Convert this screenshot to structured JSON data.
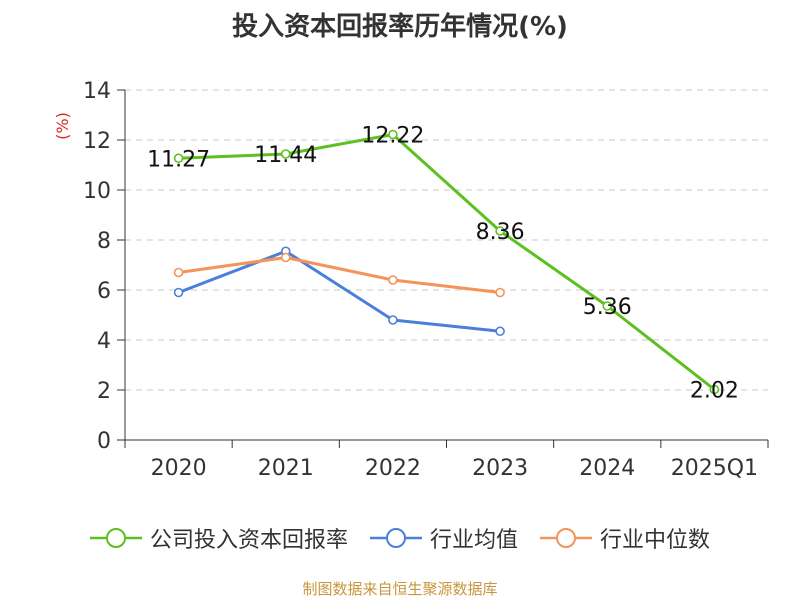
{
  "chart_data": {
    "type": "line",
    "title": "投入资本回报率历年情况(%)",
    "ylabel": "(%)",
    "categories": [
      "2020",
      "2021",
      "2022",
      "2023",
      "2024",
      "2025Q1"
    ],
    "ylim": [
      0,
      14
    ],
    "yticks": [
      0,
      2,
      4,
      6,
      8,
      10,
      12,
      14
    ],
    "grid": true,
    "legend_position": "bottom",
    "series": [
      {
        "name": "公司投入资本回报率",
        "color": "#5cc01f",
        "values": [
          11.27,
          11.44,
          12.22,
          8.36,
          5.36,
          2.02
        ],
        "labels": [
          "11.27",
          "11.44",
          "12.22",
          "8.36",
          "5.36",
          "2.02"
        ]
      },
      {
        "name": "行业均值",
        "color": "#4a7fdc",
        "values": [
          5.9,
          7.55,
          4.8,
          4.35,
          null,
          null
        ]
      },
      {
        "name": "行业中位数",
        "color": "#f4935a",
        "values": [
          6.7,
          7.3,
          6.4,
          5.9,
          null,
          null
        ]
      }
    ]
  },
  "source": "制图数据来自恒生聚源数据库"
}
